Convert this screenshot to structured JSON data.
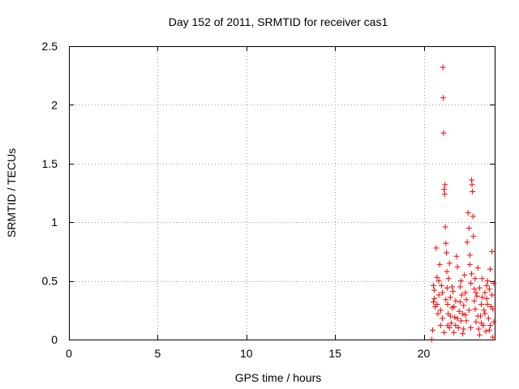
{
  "chart_data": {
    "type": "scatter",
    "title": "Day 152 of 2011, SRMTID for receiver cas1",
    "xlabel": "GPS time / hours",
    "ylabel": "SRMTID / TECUs",
    "xlim": [
      0,
      24
    ],
    "ylim": [
      0,
      2.5
    ],
    "xticks": [
      0,
      5,
      10,
      15,
      20
    ],
    "yticks": [
      0,
      0.5,
      1,
      1.5,
      2,
      2.5
    ],
    "xtick_labels": [
      "0",
      "5",
      "10",
      "15",
      "20"
    ],
    "ytick_labels": [
      "0",
      "0.5",
      "1",
      "1.5",
      "2",
      "2.5"
    ],
    "grid": true,
    "marker": "+",
    "series": [
      {
        "name": "cas1",
        "color": "#ff0000",
        "points": [
          [
            20.45,
            0.0
          ],
          [
            20.5,
            0.08
          ],
          [
            20.55,
            0.32
          ],
          [
            20.6,
            0.42
          ],
          [
            20.65,
            0.28
          ],
          [
            20.7,
            0.78
          ],
          [
            20.75,
            0.53
          ],
          [
            20.8,
            0.22
          ],
          [
            20.85,
            0.38
          ],
          [
            20.9,
            0.64
          ],
          [
            20.95,
            0.12
          ],
          [
            21.0,
            0.46
          ],
          [
            21.05,
            0.18
          ],
          [
            21.08,
            2.32
          ],
          [
            21.1,
            2.06
          ],
          [
            21.12,
            1.76
          ],
          [
            21.15,
            1.28
          ],
          [
            21.18,
            1.24
          ],
          [
            21.2,
            1.32
          ],
          [
            21.22,
            0.96
          ],
          [
            21.25,
            0.82
          ],
          [
            21.28,
            0.74
          ],
          [
            21.3,
            0.58
          ],
          [
            21.32,
            0.44
          ],
          [
            21.35,
            0.3
          ],
          [
            21.38,
            0.22
          ],
          [
            21.4,
            0.52
          ],
          [
            21.45,
            0.65
          ],
          [
            21.5,
            0.36
          ],
          [
            21.55,
            0.14
          ],
          [
            21.6,
            0.27
          ],
          [
            21.65,
            0.41
          ],
          [
            21.7,
            0.06
          ],
          [
            21.75,
            0.19
          ],
          [
            21.8,
            0.33
          ],
          [
            21.85,
            0.71
          ],
          [
            21.9,
            0.62
          ],
          [
            21.95,
            0.1
          ],
          [
            22.0,
            0.24
          ],
          [
            22.05,
            0.45
          ],
          [
            22.1,
            0.16
          ],
          [
            22.15,
            0.38
          ],
          [
            22.2,
            0.05
          ],
          [
            22.25,
            0.29
          ],
          [
            22.3,
            0.55
          ],
          [
            22.35,
            0.21
          ],
          [
            22.4,
            0.34
          ],
          [
            22.45,
            0.83
          ],
          [
            22.5,
            1.08
          ],
          [
            22.55,
            0.95
          ],
          [
            22.6,
            0.72
          ],
          [
            22.65,
            0.48
          ],
          [
            22.7,
            1.36
          ],
          [
            22.72,
            1.32
          ],
          [
            22.75,
            1.26
          ],
          [
            22.78,
            1.05
          ],
          [
            22.8,
            0.88
          ],
          [
            22.85,
            0.43
          ],
          [
            22.9,
            0.26
          ],
          [
            22.95,
            0.15
          ],
          [
            23.0,
            0.37
          ],
          [
            23.05,
            0.61
          ],
          [
            23.1,
            0.09
          ],
          [
            23.15,
            0.44
          ],
          [
            23.2,
            0.2
          ],
          [
            23.25,
            0.3
          ],
          [
            23.3,
            0.52
          ],
          [
            23.35,
            0.12
          ],
          [
            23.4,
            0.25
          ],
          [
            23.45,
            0.4
          ],
          [
            23.5,
            0.07
          ],
          [
            23.55,
            0.35
          ],
          [
            23.6,
            0.5
          ],
          [
            23.65,
            0.18
          ],
          [
            23.7,
            0.43
          ],
          [
            23.75,
            0.6
          ],
          [
            23.8,
            0.28
          ],
          [
            23.85,
            0.75
          ],
          [
            23.9,
            0.02
          ],
          [
            23.95,
            0.48
          ],
          [
            20.6,
            0.35
          ],
          [
            20.75,
            0.3
          ],
          [
            20.95,
            0.25
          ],
          [
            21.05,
            0.4
          ],
          [
            21.35,
            0.12
          ],
          [
            21.5,
            0.2
          ],
          [
            21.7,
            0.28
          ],
          [
            21.9,
            0.18
          ],
          [
            22.05,
            0.32
          ],
          [
            22.2,
            0.22
          ],
          [
            22.35,
            0.4
          ],
          [
            22.55,
            0.25
          ],
          [
            22.85,
            0.33
          ],
          [
            23.05,
            0.2
          ],
          [
            23.25,
            0.14
          ],
          [
            23.45,
            0.22
          ],
          [
            23.6,
            0.3
          ],
          [
            23.75,
            0.12
          ],
          [
            23.9,
            0.26
          ],
          [
            20.55,
            0.46
          ],
          [
            20.85,
            0.5
          ],
          [
            21.25,
            0.34
          ],
          [
            21.6,
            0.45
          ],
          [
            22.1,
            0.5
          ],
          [
            22.4,
            0.16
          ],
          [
            22.7,
            0.56
          ],
          [
            22.95,
            0.4
          ],
          [
            23.3,
            0.36
          ],
          [
            23.55,
            0.46
          ],
          [
            23.85,
            0.38
          ],
          [
            21.15,
            0.06
          ],
          [
            21.45,
            0.1
          ],
          [
            21.8,
            0.12
          ],
          [
            22.25,
            0.09
          ],
          [
            22.65,
            0.1
          ],
          [
            23.15,
            0.04
          ],
          [
            23.7,
            0.08
          ],
          [
            23.95,
            0.15
          ],
          [
            22.6,
            0.64
          ],
          [
            22.9,
            0.52
          ]
        ]
      }
    ]
  }
}
